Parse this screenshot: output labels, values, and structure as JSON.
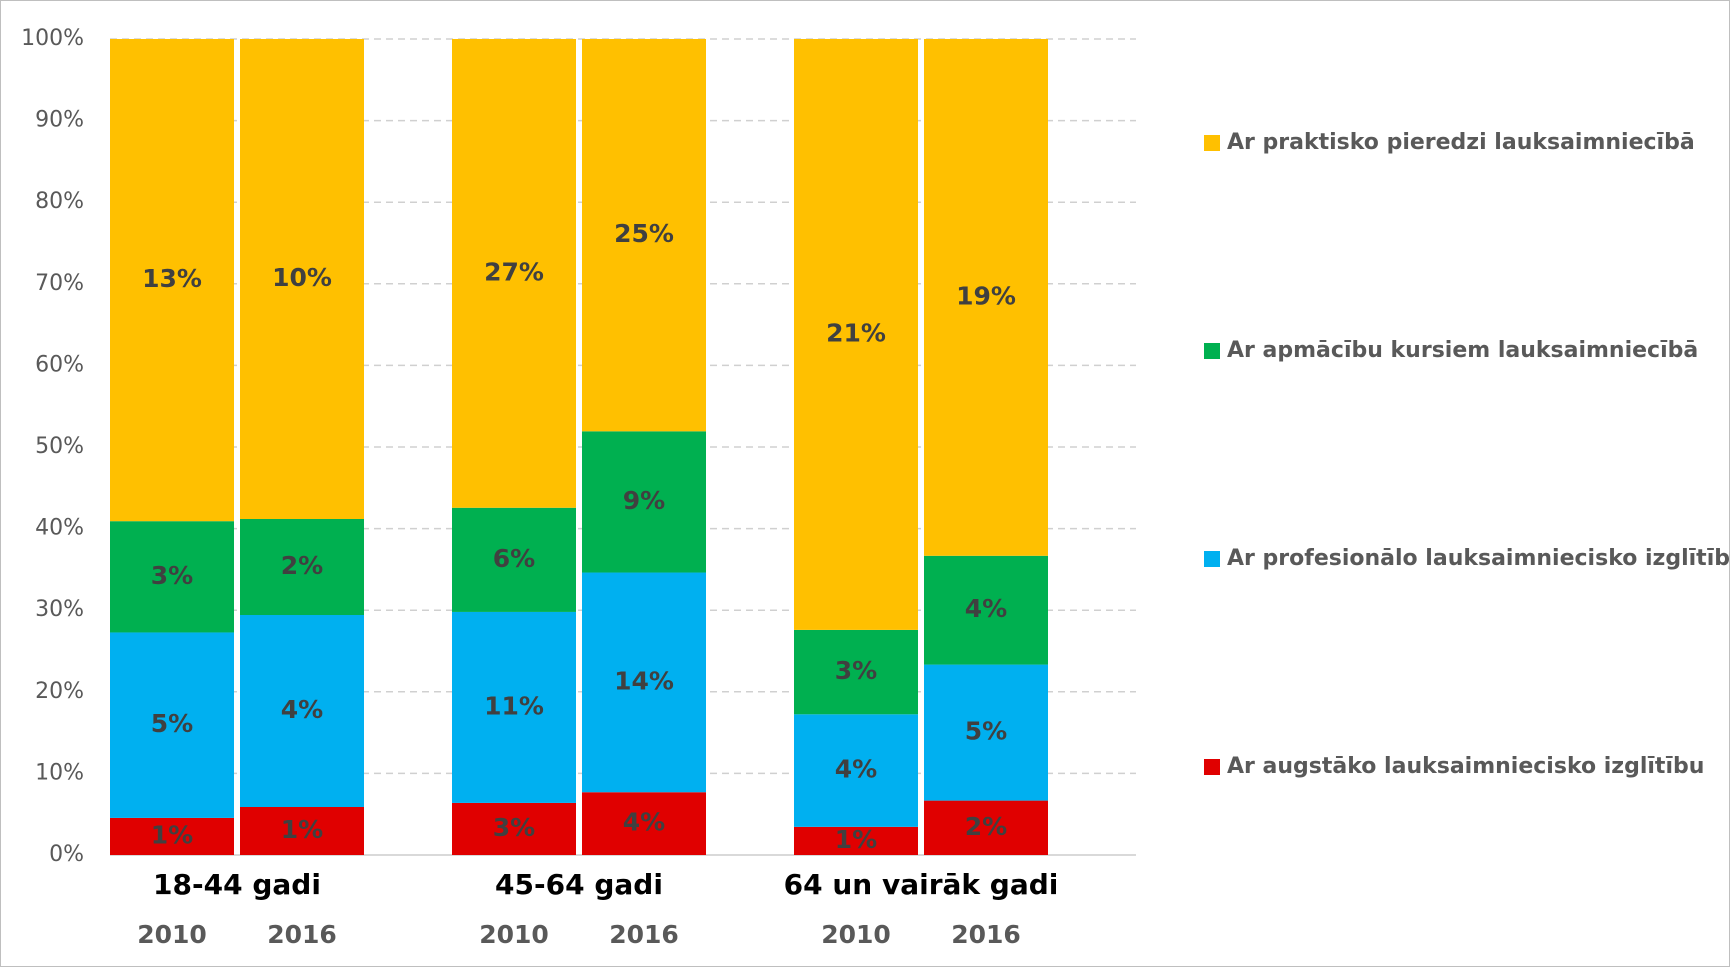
{
  "chart_data": {
    "type": "bar",
    "stacking": "percent",
    "groups": [
      "18-44 gadi",
      "45-64 gadi",
      "64 un vairāk gadi"
    ],
    "categories": [
      "2010",
      "2016",
      "2010",
      "2016",
      "2010",
      "2016"
    ],
    "series": [
      {
        "name": "Ar augstāko lauksaimniecisko izglītību",
        "color": "#e00000",
        "values": [
          1,
          1,
          3,
          4,
          1,
          2
        ],
        "value_labels": [
          "1%",
          "1%",
          "3%",
          "4%",
          "1%",
          "2%"
        ]
      },
      {
        "name": "Ar profesionālo lauksaimniecisko izglītību",
        "color": "#00b0f0",
        "values": [
          5,
          4,
          11,
          14,
          4,
          5
        ],
        "value_labels": [
          "5%",
          "4%",
          "11%",
          "14%",
          "4%",
          "5%"
        ]
      },
      {
        "name": "Ar apmācību kursiem lauksaimniecībā",
        "color": "#00b050",
        "values": [
          3,
          2,
          6,
          9,
          3,
          4
        ],
        "value_labels": [
          "3%",
          "2%",
          "6%",
          "9%",
          "3%",
          "4%"
        ]
      },
      {
        "name": "Ar praktisko pieredzi lauksaimniecībā",
        "color": "#ffc000",
        "values": [
          13,
          10,
          27,
          25,
          21,
          19
        ],
        "value_labels": [
          "13%",
          "10%",
          "27%",
          "25%",
          "21%",
          "19%"
        ]
      }
    ],
    "ylim": [
      0,
      100
    ],
    "yticks": [
      {
        "value": 0,
        "label": "0%"
      },
      {
        "value": 10,
        "label": "10%"
      },
      {
        "value": 20,
        "label": "20%"
      },
      {
        "value": 30,
        "label": "30%"
      },
      {
        "value": 40,
        "label": "40%"
      },
      {
        "value": 50,
        "label": "50%"
      },
      {
        "value": 60,
        "label": "60%"
      },
      {
        "value": 70,
        "label": "70%"
      },
      {
        "value": 80,
        "label": "80%"
      },
      {
        "value": 90,
        "label": "90%"
      },
      {
        "value": 100,
        "label": "100%"
      }
    ],
    "grid": true,
    "legend": "right"
  }
}
